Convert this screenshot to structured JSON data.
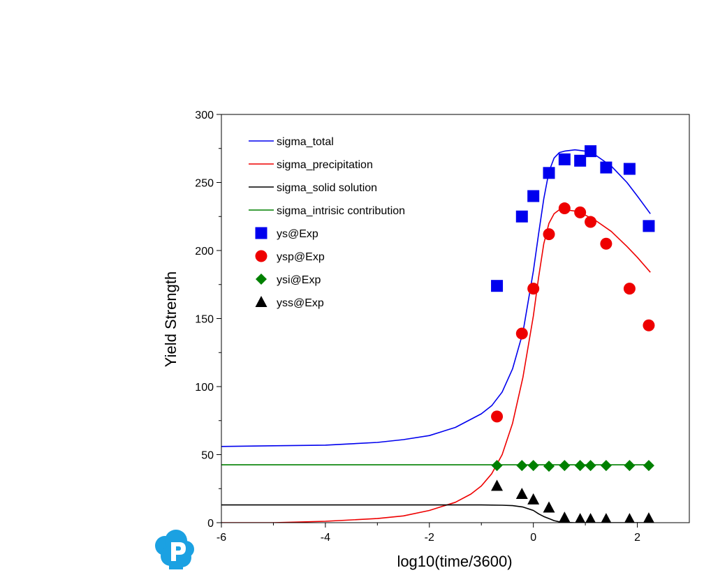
{
  "chart_data": {
    "type": "line",
    "title": "",
    "xlabel": "log10(time/3600)",
    "ylabel": "Yield Strength",
    "xlim": [
      -6,
      3
    ],
    "ylim": [
      0,
      300
    ],
    "xticks": [
      -6,
      -4,
      -2,
      0,
      2
    ],
    "yticks": [
      0,
      50,
      100,
      150,
      200,
      250,
      300
    ],
    "xtick_labels": [
      "-6",
      "-4",
      "-2",
      "0",
      "2"
    ],
    "ytick_labels": [
      "0",
      "50",
      "100",
      "150",
      "200",
      "250",
      "300"
    ],
    "grid": false,
    "legend_position": "top-left",
    "lines": [
      {
        "name": "sigma_total",
        "color": "#0000ee",
        "x": [
          -6,
          -5,
          -4,
          -3,
          -2.5,
          -2,
          -1.5,
          -1,
          -0.8,
          -0.6,
          -0.4,
          -0.2,
          0,
          0.1,
          0.2,
          0.3,
          0.4,
          0.5,
          0.6,
          0.8,
          1,
          1.2,
          1.5,
          1.8,
          2,
          2.25
        ],
        "y": [
          56,
          56.5,
          57,
          59,
          61,
          64,
          70,
          80,
          86,
          96,
          113,
          140,
          185,
          212,
          238,
          258,
          268,
          272,
          273,
          274,
          273,
          270,
          262,
          250,
          240,
          227
        ]
      },
      {
        "name": "sigma_precipitation",
        "color": "#ee0000",
        "x": [
          -6,
          -5,
          -4,
          -3,
          -2.5,
          -2,
          -1.5,
          -1.2,
          -1,
          -0.8,
          -0.6,
          -0.4,
          -0.2,
          0,
          0.1,
          0.2,
          0.3,
          0.4,
          0.5,
          0.6,
          0.8,
          1,
          1.2,
          1.5,
          1.8,
          2,
          2.25
        ],
        "y": [
          0,
          0,
          1,
          3,
          5,
          9,
          15,
          21,
          27,
          36,
          50,
          73,
          107,
          152,
          180,
          205,
          220,
          227,
          230,
          230,
          229,
          226,
          222,
          214,
          203,
          195,
          184
        ]
      },
      {
        "name": "sigma_solid solution",
        "color": "#000000",
        "x": [
          -6,
          -4,
          -2,
          -1,
          -0.6,
          -0.4,
          -0.2,
          0,
          0.1,
          0.2,
          0.3,
          0.4,
          0.5,
          0.6,
          0.8,
          1,
          1.5,
          2,
          2.25
        ],
        "y": [
          13,
          13,
          13,
          13,
          12.8,
          12.5,
          11.5,
          9,
          6.5,
          4.5,
          3,
          1.5,
          0.6,
          0.2,
          0,
          0,
          0,
          0,
          0
        ]
      },
      {
        "name": "sigma_intrisic contribution",
        "color": "#008000",
        "x": [
          -6,
          2.25
        ],
        "y": [
          42.5,
          42.5
        ]
      }
    ],
    "scatter": [
      {
        "name": "ys@Exp",
        "color": "#0000ee",
        "marker": "square",
        "x": [
          -0.7,
          -0.22,
          0,
          0.3,
          0.6,
          0.9,
          1.1,
          1.4,
          1.85,
          2.22
        ],
        "y": [
          174,
          225,
          240,
          257,
          267,
          266,
          273,
          261,
          260,
          218
        ]
      },
      {
        "name": "ysp@Exp",
        "color": "#ee0000",
        "marker": "circle",
        "x": [
          -0.7,
          -0.22,
          0,
          0.3,
          0.6,
          0.9,
          1.1,
          1.4,
          1.85,
          2.22
        ],
        "y": [
          78,
          139,
          172,
          212,
          231,
          228,
          221,
          205,
          172,
          145
        ]
      },
      {
        "name": "ysi@Exp",
        "color": "#008000",
        "marker": "diamond",
        "x": [
          -0.7,
          -0.22,
          0,
          0.3,
          0.6,
          0.9,
          1.1,
          1.4,
          1.85,
          2.22
        ],
        "y": [
          42,
          42,
          42,
          41.5,
          42,
          42,
          42,
          42,
          42,
          42
        ]
      },
      {
        "name": "yss@Exp",
        "color": "#000000",
        "marker": "triangle",
        "x": [
          -0.7,
          -0.22,
          0,
          0.3,
          0.6,
          0.9,
          1.1,
          1.4,
          1.85,
          2.22
        ],
        "y": [
          27,
          21,
          17,
          11,
          3.5,
          2.5,
          2.5,
          2.5,
          2.5,
          3
        ]
      }
    ]
  },
  "branding": {
    "logo_icon": "p-cloud-logo-icon",
    "logo_color": "#1ba1e2"
  }
}
